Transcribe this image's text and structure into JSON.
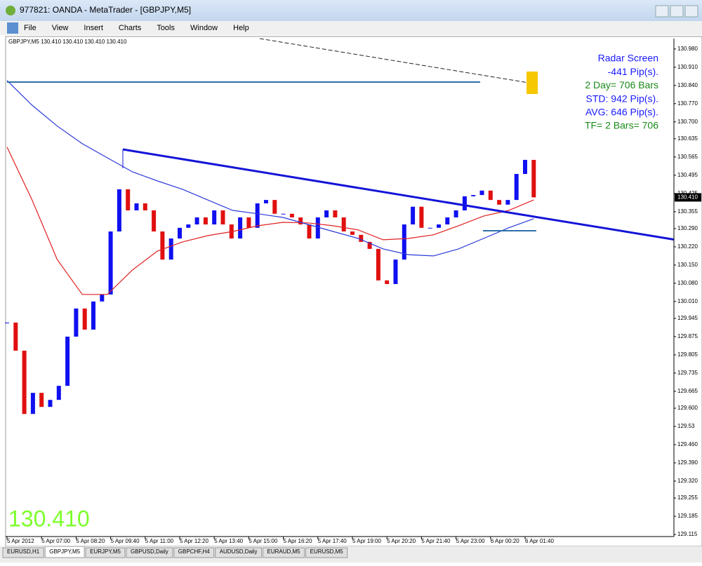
{
  "window": {
    "title": "977821: OANDA - MetaTrader - [GBPJPY,M5]",
    "menu": [
      "File",
      "View",
      "Insert",
      "Charts",
      "Tools",
      "Window",
      "Help"
    ],
    "tabs": [
      "EURUSD,H1",
      "GBPJPY,M5",
      "EURJPY,M5",
      "GBPUSD,Daily",
      "GBPCHF,H4",
      "AUDUSD,Daily",
      "EURAUD,M5",
      "EURUSD,M5"
    ],
    "active_tab": "GBPJPY,M5"
  },
  "chart_data": {
    "type": "candlestick",
    "header": "GBPJPY,M5 130.410 130.410 130.410 130.410",
    "radar": [
      {
        "text": "Radar Screen",
        "color": "#1a1aff"
      },
      {
        "text": "-441 Pip(s).",
        "color": "#1a1aff"
      },
      {
        "text": "2 Day= 706 Bars",
        "color": "#1a8a1a"
      },
      {
        "text": "STD: 942 Pip(s).",
        "color": "#1a1aff"
      },
      {
        "text": "AVG: 646 Pip(s).",
        "color": "#1a1aff"
      },
      {
        "text": "TF= 2 Bars= 706",
        "color": "#1a8a1a"
      }
    ],
    "last": {
      "value": 130.41,
      "label": "130.410"
    },
    "up_color": "#1010f0",
    "down_color": "#e01010",
    "closes": [
      129.929,
      129.821,
      129.578,
      129.659,
      129.605,
      129.632,
      129.686,
      129.875,
      129.983,
      129.902,
      130.01,
      130.037,
      130.279,
      130.441,
      130.36,
      130.387,
      130.36,
      130.279,
      130.171,
      130.252,
      130.293,
      130.306,
      130.333,
      130.306,
      130.36,
      130.306,
      130.252,
      130.333,
      130.293,
      130.387,
      130.4,
      130.347,
      130.347,
      130.333,
      130.306,
      130.252,
      130.333,
      130.36,
      130.333,
      130.279,
      130.266,
      130.239,
      130.212,
      130.091,
      130.077,
      130.171,
      130.306,
      130.374,
      130.293,
      130.293,
      130.306,
      130.333,
      130.36,
      130.414,
      130.419,
      130.436,
      130.4,
      130.382,
      130.4,
      130.5,
      130.554,
      130.41
    ],
    "series": [
      {
        "color": "#e02020",
        "values": [
          130.603,
          130.4,
          130.171,
          130.037,
          130.037,
          130.131,
          130.204,
          130.239,
          130.263,
          130.279,
          130.301,
          130.314,
          130.312,
          130.301,
          130.285,
          130.247,
          130.252,
          130.266,
          130.301,
          130.338,
          130.36,
          130.4
        ]
      },
      {
        "color": "#2a3ad8",
        "values": [
          130.859,
          130.764,
          130.684,
          130.616,
          130.562,
          130.508,
          130.473,
          130.441,
          130.4,
          130.36,
          130.347,
          130.333,
          130.306,
          130.279,
          130.252,
          130.212,
          130.19,
          130.185,
          130.212,
          130.252,
          130.293,
          130.328
        ]
      }
    ],
    "xticks": [
      "5 Apr 2012",
      "5 Apr 07:00",
      "5 Apr 08:20",
      "5 Apr 09:40",
      "5 Apr 11:00",
      "5 Apr 12:20",
      "5 Apr 13:40",
      "5 Apr 15:00",
      "5 Apr 16:20",
      "5 Apr 17:40",
      "5 Apr 19:00",
      "5 Apr 20:20",
      "5 Apr 21:40",
      "5 Apr 23:00",
      "6 Apr 00:20",
      "6 Apr 01:40"
    ],
    "ylim": [
      129.107,
      131.02
    ],
    "yticks": [
      {
        "value": 130.98,
        "label": "130.980"
      },
      {
        "value": 130.91,
        "label": "130.910"
      },
      {
        "value": 130.84,
        "label": "130.840"
      },
      {
        "value": 130.77,
        "label": "130.770"
      },
      {
        "value": 130.7,
        "label": "130.700"
      },
      130.635,
      130.565,
      130.495,
      130.425,
      130.355,
      {
        "value": 130.29,
        "label": "130.290"
      },
      {
        "value": 130.22,
        "label": "130.220"
      },
      {
        "value": 130.15,
        "label": "130.150"
      },
      {
        "value": 130.08,
        "label": "130.080"
      },
      {
        "value": 130.01,
        "label": "130.010"
      },
      129.945,
      129.875,
      129.805,
      129.735,
      129.665,
      {
        "value": 129.6,
        "label": "129.600"
      },
      129.53,
      {
        "value": 129.46,
        "label": "129.460"
      },
      {
        "value": 129.39,
        "label": "129.390"
      },
      {
        "value": 129.32,
        "label": "129.320"
      },
      129.255,
      129.185,
      129.115
    ]
  }
}
